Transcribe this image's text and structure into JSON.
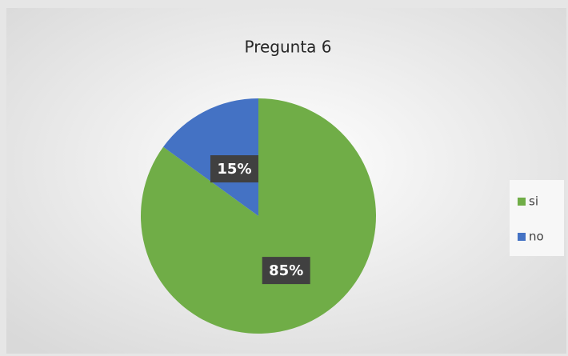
{
  "chart_data": {
    "type": "pie",
    "title": "Pregunta 6",
    "categories": [
      "si",
      "no"
    ],
    "values": [
      85,
      15
    ],
    "value_labels": [
      "85%",
      "15%"
    ],
    "colors": [
      "#70ad47",
      "#4472c4"
    ],
    "legend": "right"
  }
}
